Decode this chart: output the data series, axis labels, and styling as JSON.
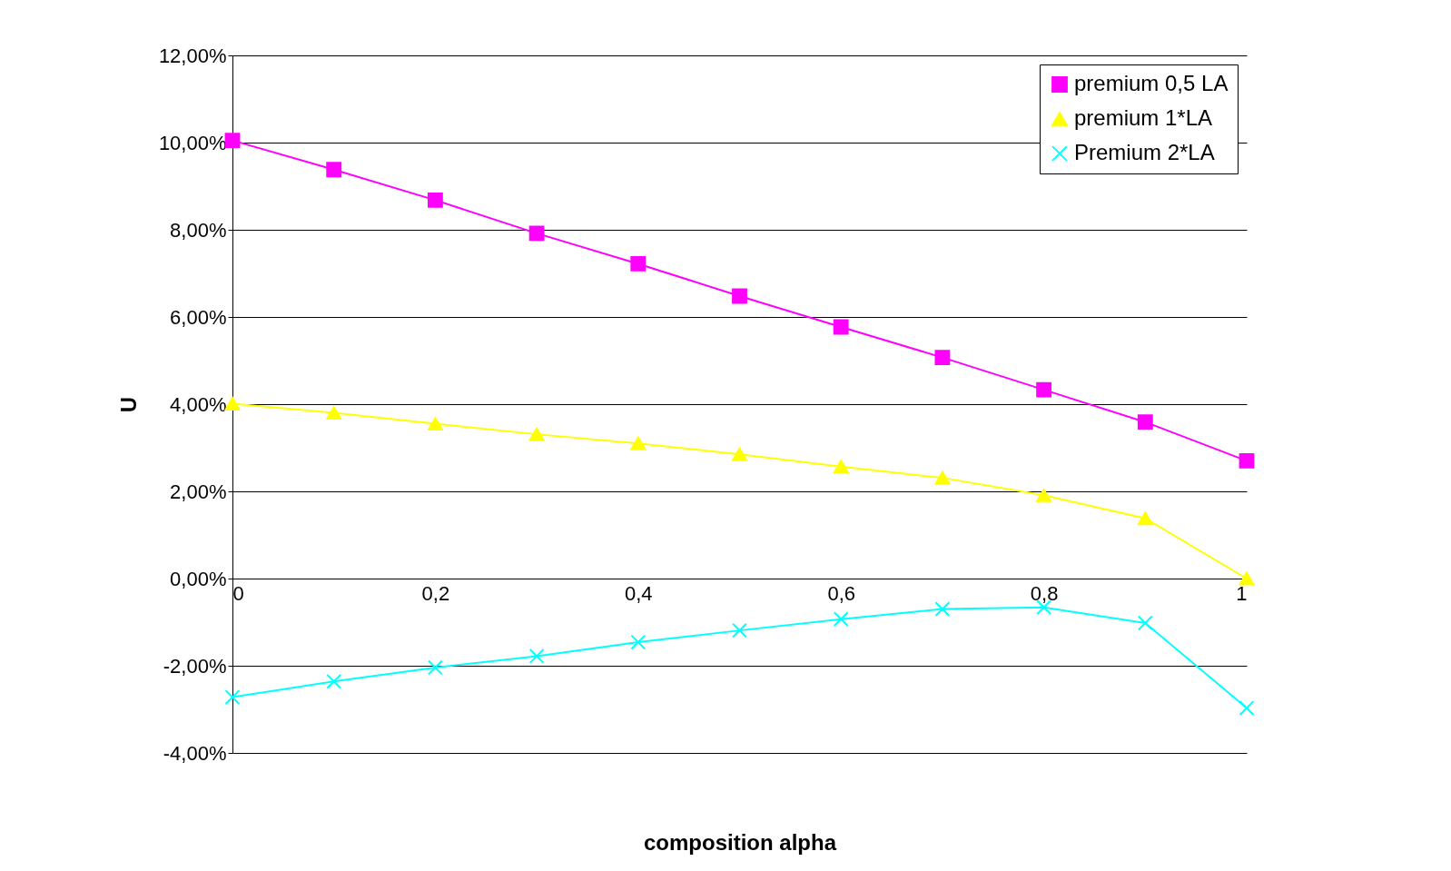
{
  "chart_data": {
    "type": "line",
    "xlabel": "composition alpha",
    "ylabel": "U",
    "x": [
      0,
      0.1,
      0.2,
      0.3,
      0.4,
      0.5,
      0.6,
      0.7,
      0.8,
      0.9,
      1
    ],
    "series": [
      {
        "name": "premium 0,5 LA",
        "color": "#ff00ff",
        "marker": "square",
        "values": [
          10.05,
          9.38,
          8.68,
          7.92,
          7.22,
          6.48,
          5.77,
          5.07,
          4.33,
          3.59,
          2.7
        ]
      },
      {
        "name": "premium 1*LA",
        "color": "#ffff00",
        "marker": "triangle",
        "values": [
          4.01,
          3.8,
          3.55,
          3.31,
          3.1,
          2.85,
          2.57,
          2.31,
          1.91,
          1.38,
          0
        ]
      },
      {
        "name": "Premium 2*LA",
        "color": "#00ffff",
        "marker": "cross",
        "values": [
          -2.72,
          -2.36,
          -2.04,
          -1.78,
          -1.46,
          -1.19,
          -0.93,
          -0.7,
          -0.66,
          -1.02,
          -2.97
        ]
      }
    ],
    "xlim": [
      0,
      1
    ],
    "xticks": [
      {
        "value": 0,
        "label": "0"
      },
      {
        "value": 0.2,
        "label": "0,2"
      },
      {
        "value": 0.4,
        "label": "0,4"
      },
      {
        "value": 0.6,
        "label": "0,6"
      },
      {
        "value": 0.8,
        "label": "0,8"
      },
      {
        "value": 1,
        "label": "1"
      }
    ],
    "ylim": [
      -4,
      12
    ],
    "yticks": [
      {
        "value": -4,
        "label": "-4,00%"
      },
      {
        "value": -2,
        "label": "-2,00%"
      },
      {
        "value": 0,
        "label": "0,00%"
      },
      {
        "value": 2,
        "label": "2,00%"
      },
      {
        "value": 4,
        "label": "4,00%"
      },
      {
        "value": 6,
        "label": "6,00%"
      },
      {
        "value": 8,
        "label": "8,00%"
      },
      {
        "value": 10,
        "label": "10,00%"
      },
      {
        "value": 12,
        "label": "12,00%"
      }
    ],
    "grid": "y",
    "legend": "top right",
    "line_style": "solid"
  }
}
